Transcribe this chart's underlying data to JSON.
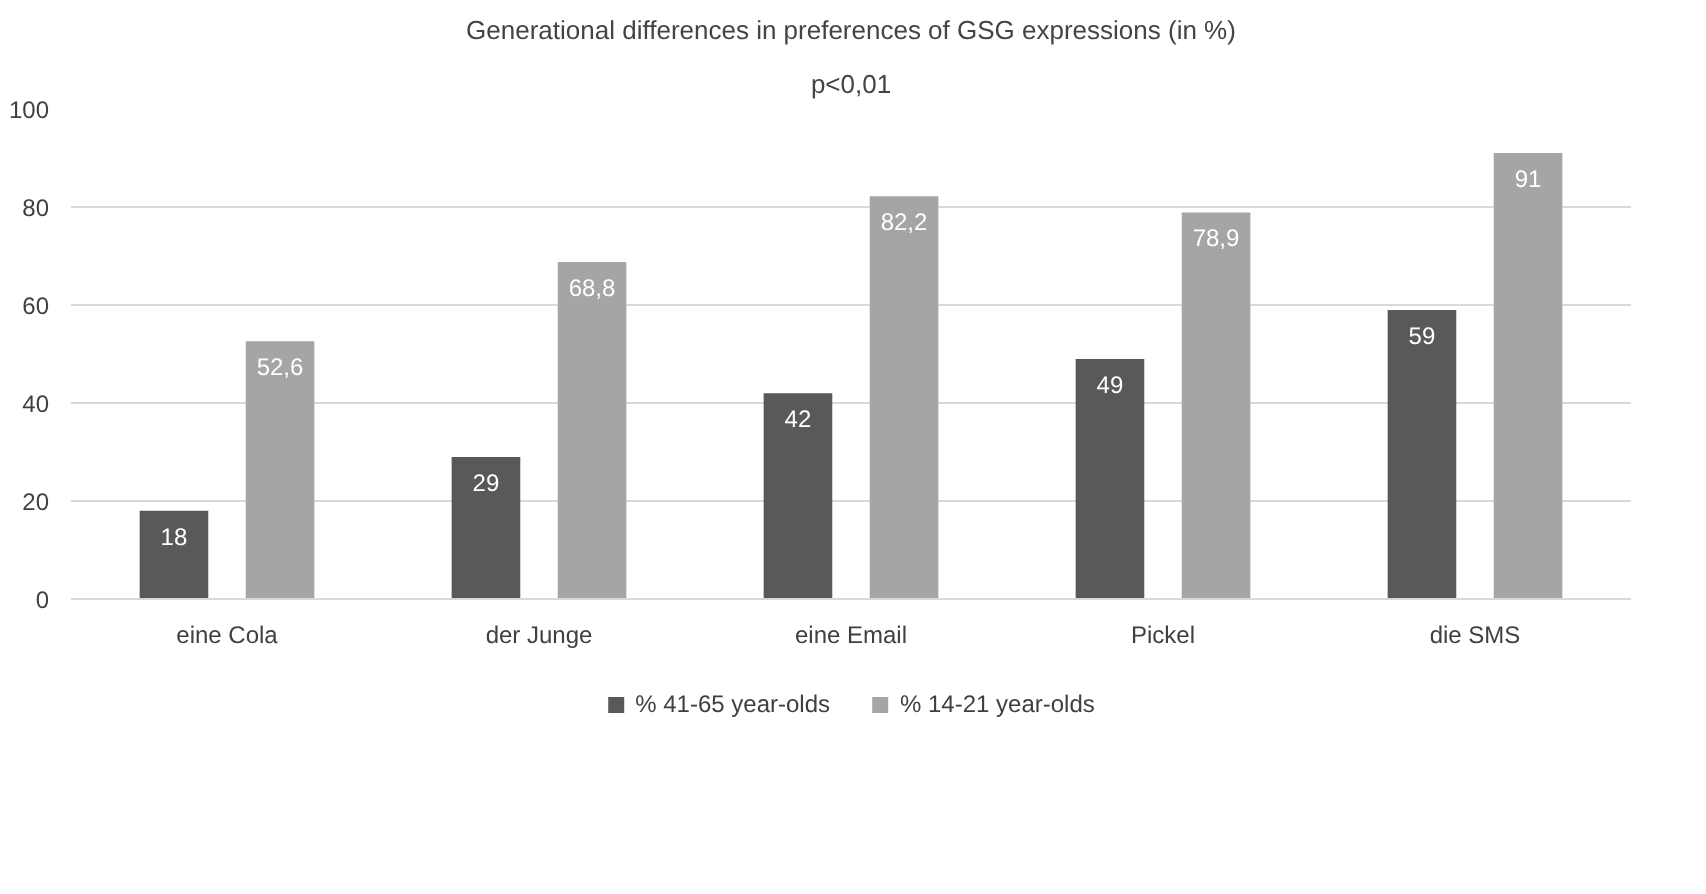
{
  "chart_data": {
    "type": "bar",
    "title": "Generational differences in preferences of GSG expressions (in %)",
    "subtitle": "p<0,01",
    "categories": [
      "eine Cola",
      "der Junge",
      "eine Email",
      "Pickel",
      "die SMS"
    ],
    "series": [
      {
        "name": "% 41-65 year-olds",
        "color": "#595959",
        "values": [
          18,
          29,
          42,
          49,
          59
        ],
        "value_labels": [
          "18",
          "29",
          "42",
          "49",
          "59"
        ]
      },
      {
        "name": "% 14-21 year-olds",
        "color": "#a5a5a5",
        "values": [
          52.6,
          68.8,
          82.2,
          78.9,
          91
        ],
        "value_labels": [
          "52,6",
          "68,8",
          "82,2",
          "78,9",
          "91"
        ]
      }
    ],
    "ylim": [
      0,
      100
    ],
    "yticks": [
      0,
      20,
      40,
      60,
      80,
      100
    ],
    "grid": "y",
    "legend": "bottom"
  }
}
